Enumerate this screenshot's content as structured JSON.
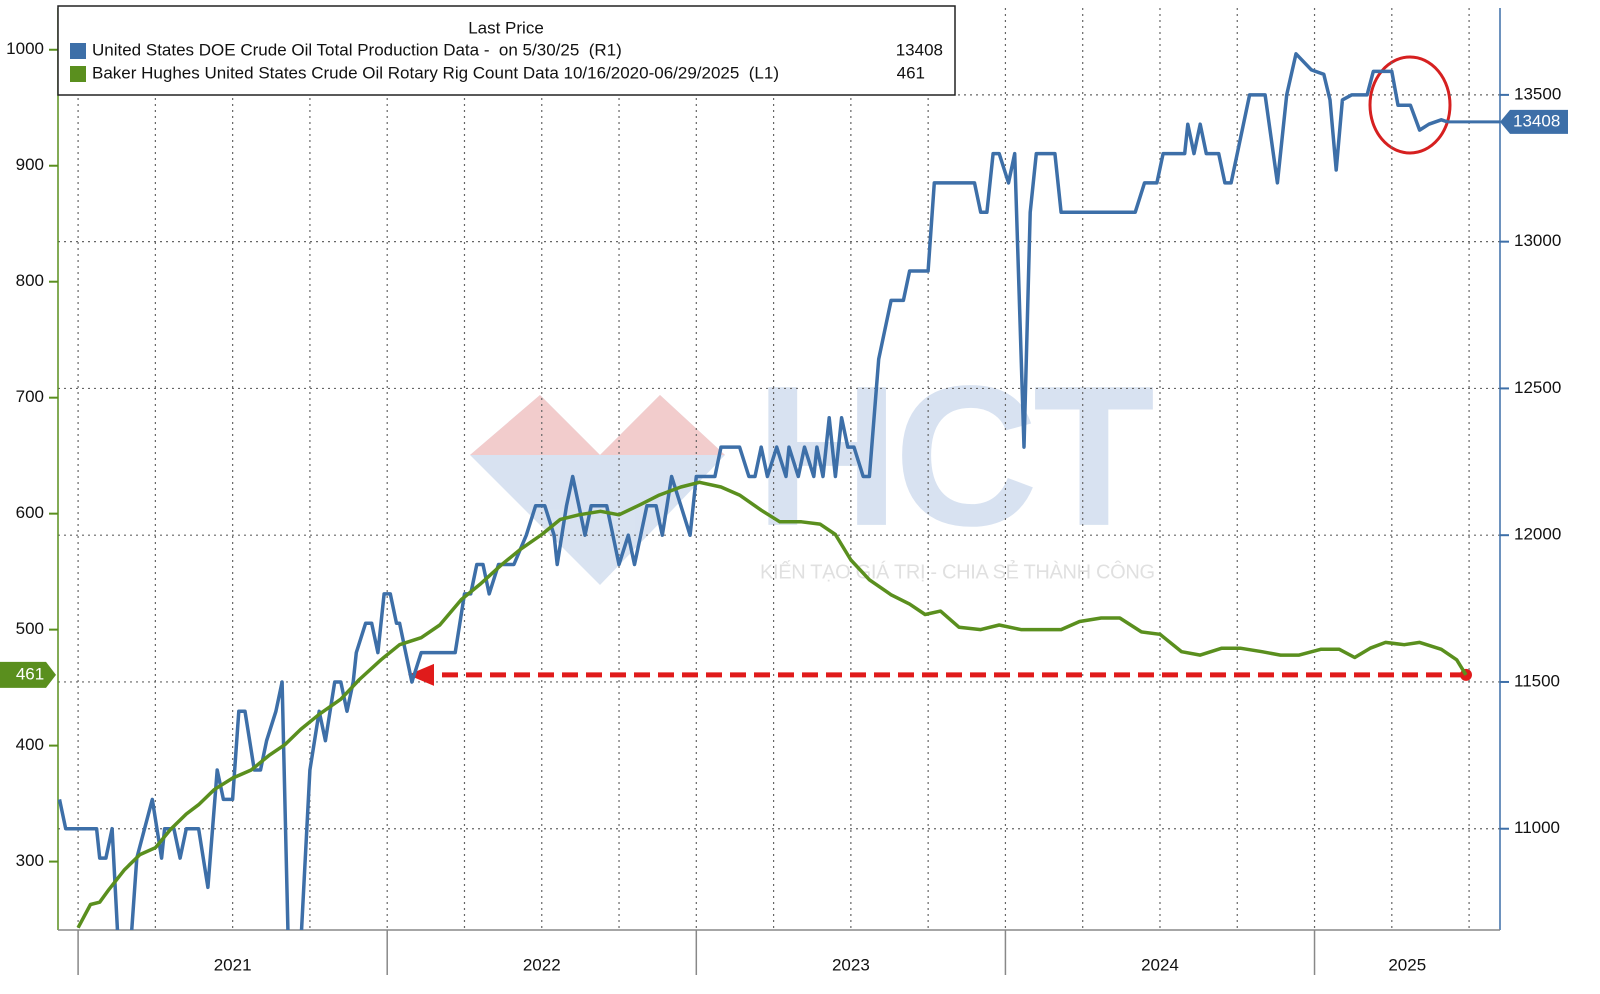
{
  "chart_data": {
    "type": "line",
    "legend_title": "Last Price",
    "legend": "upper left",
    "grid": true,
    "watermark": {
      "logo": "HCT",
      "tagline": "KIẾN TẠO GIÁ TRỊ - CHIA SẺ THÀNH CÔNG"
    },
    "xlim": [
      2020.935,
      2025.6
    ],
    "xticks": [
      {
        "value": 2021,
        "label": "2021"
      },
      {
        "value": 2022,
        "label": "2022"
      },
      {
        "value": 2023,
        "label": "2023"
      },
      {
        "value": 2024,
        "label": "2024"
      },
      {
        "value": 2025,
        "label": "2025"
      }
    ],
    "ylim": [
      241,
      1036
    ],
    "yticks": [
      300,
      400,
      500,
      600,
      700,
      800,
      900,
      1000
    ],
    "y2lim": [
      10655,
      13796
    ],
    "y2ticks": [
      11000,
      11500,
      12000,
      12500,
      13000,
      13500
    ],
    "series": [
      {
        "name": "United States DOE Crude Oil Total Production Data -  on 5/30/25  (R1)",
        "color": "#3d6fa8",
        "axis": "y2",
        "x": [
          2020.94,
          2020.96,
          2021.06,
          2021.07,
          2021.09,
          2021.11,
          2021.13,
          2021.17,
          2021.19,
          2021.24,
          2021.27,
          2021.28,
          2021.31,
          2021.33,
          2021.35,
          2021.39,
          2021.42,
          2021.45,
          2021.47,
          2021.5,
          2021.52,
          2021.54,
          2021.57,
          2021.59,
          2021.61,
          2021.64,
          2021.66,
          2021.68,
          2021.72,
          2021.75,
          2021.78,
          2021.8,
          2021.83,
          2021.85,
          2021.87,
          2021.89,
          2021.9,
          2021.93,
          2021.95,
          2021.97,
          2021.99,
          2022.01,
          2022.03,
          2022.04,
          2022.06,
          2022.08,
          2022.11,
          2022.22,
          2022.25,
          2022.27,
          2022.29,
          2022.31,
          2022.33,
          2022.36,
          2022.41,
          2022.45,
          2022.48,
          2022.51,
          2022.54,
          2022.55,
          2022.58,
          2022.6,
          2022.62,
          2022.64,
          2022.66,
          2022.71,
          2022.73,
          2022.75,
          2022.78,
          2022.8,
          2022.82,
          2022.84,
          2022.87,
          2022.89,
          2022.92,
          2022.95,
          2022.98,
          2023.0,
          2023.06,
          2023.08,
          2023.14,
          2023.17,
          2023.19,
          2023.21,
          2023.23,
          2023.26,
          2023.29,
          2023.3,
          2023.33,
          2023.35,
          2023.38,
          2023.39,
          2023.41,
          2023.43,
          2023.45,
          2023.47,
          2023.49,
          2023.51,
          2023.54,
          2023.56,
          2023.59,
          2023.61,
          2023.63,
          2023.67,
          2023.69,
          2023.75,
          2023.77,
          2023.9,
          2023.92,
          2023.94,
          2023.96,
          2023.98,
          2024.01,
          2024.03,
          2024.06,
          2024.08,
          2024.1,
          2024.16,
          2024.18,
          2024.42,
          2024.45,
          2024.49,
          2024.51,
          2024.58,
          2024.59,
          2024.61,
          2024.63,
          2024.65,
          2024.69,
          2024.71,
          2024.73,
          2024.79,
          2024.84,
          2024.88,
          2024.91,
          2024.94,
          2024.99,
          2025.03,
          2025.05,
          2025.07,
          2025.09,
          2025.12,
          2025.17,
          2025.19,
          2025.25,
          2025.27,
          2025.31,
          2025.34,
          2025.37,
          2025.41,
          2025.43
        ],
        "values": [
          11100,
          11000,
          11000,
          10900,
          10900,
          11000,
          10600,
          10600,
          10900,
          11100,
          10900,
          11000,
          11000,
          10900,
          11000,
          11000,
          10800,
          11200,
          11100,
          11100,
          11400,
          11400,
          11200,
          11200,
          11300,
          11400,
          11500,
          10600,
          10600,
          11200,
          11400,
          11300,
          11500,
          11500,
          11400,
          11500,
          11600,
          11700,
          11700,
          11600,
          11800,
          11800,
          11700,
          11700,
          11600,
          11500,
          11600,
          11600,
          11800,
          11800,
          11900,
          11900,
          11800,
          11900,
          11900,
          12000,
          12100,
          12100,
          12000,
          11900,
          12100,
          12200,
          12100,
          12000,
          12100,
          12100,
          12000,
          11900,
          12000,
          11900,
          12000,
          12100,
          12100,
          12000,
          12200,
          12100,
          12000,
          12200,
          12200,
          12300,
          12300,
          12200,
          12200,
          12300,
          12200,
          12300,
          12200,
          12300,
          12200,
          12300,
          12200,
          12300,
          12200,
          12400,
          12200,
          12400,
          12300,
          12300,
          12200,
          12200,
          12600,
          12700,
          12800,
          12800,
          12900,
          12900,
          13200,
          13200,
          13100,
          13100,
          13300,
          13300,
          13200,
          13300,
          12300,
          13100,
          13300,
          13300,
          13100,
          13100,
          13200,
          13200,
          13300,
          13300,
          13400,
          13300,
          13400,
          13300,
          13300,
          13200,
          13200,
          13500,
          13500,
          13200,
          13500,
          13640,
          13585,
          13570,
          13483,
          13244,
          13483,
          13500,
          13500,
          13580,
          13580,
          13465,
          13465,
          13380,
          13400,
          13415,
          13408
        ]
      },
      {
        "name": "Baker Hughes United States Crude Oil Rotary Rig Count Data 10/16/2020-06/29/2025  (L1)",
        "color": "#5a8f1e",
        "x": [
          2021.0,
          2021.04,
          2021.07,
          2021.1,
          2021.15,
          2021.2,
          2021.25,
          2021.3,
          2021.35,
          2021.39,
          2021.44,
          2021.5,
          2021.56,
          2021.62,
          2021.67,
          2021.72,
          2021.78,
          2021.85,
          2021.91,
          2021.98,
          2022.04,
          2022.11,
          2022.17,
          2022.24,
          2022.3,
          2022.37,
          2022.43,
          2022.5,
          2022.56,
          2022.62,
          2022.69,
          2022.75,
          2022.82,
          2022.88,
          2022.95,
          2023.01,
          2023.08,
          2023.14,
          2023.21,
          2023.27,
          2023.34,
          2023.4,
          2023.45,
          2023.5,
          2023.56,
          2023.63,
          2023.69,
          2023.74,
          2023.79,
          2023.85,
          2023.92,
          2023.98,
          2024.05,
          2024.11,
          2024.18,
          2024.24,
          2024.31,
          2024.37,
          2024.44,
          2024.5,
          2024.57,
          2024.63,
          2024.7,
          2024.76,
          2024.83,
          2024.89,
          2024.95,
          2025.02,
          2025.08,
          2025.13,
          2025.18,
          2025.23,
          2025.29,
          2025.34,
          2025.41,
          2025.46,
          2025.49
        ],
        "values": [
          243,
          263,
          265,
          276,
          293,
          306,
          312,
          328,
          341,
          349,
          362,
          372,
          379,
          392,
          401,
          414,
          427,
          440,
          457,
          474,
          487,
          493,
          504,
          526,
          539,
          556,
          569,
          582,
          595,
          599,
          602,
          599,
          608,
          616,
          623,
          627,
          623,
          616,
          603,
          593,
          593,
          591,
          582,
          560,
          543,
          530,
          522,
          513,
          516,
          502,
          500,
          504,
          500,
          500,
          500,
          507,
          510,
          510,
          498,
          496,
          481,
          478,
          484,
          484,
          481,
          478,
          478,
          483,
          483,
          476,
          484,
          489,
          487,
          489,
          483,
          474,
          461
        ]
      }
    ]
  }
}
